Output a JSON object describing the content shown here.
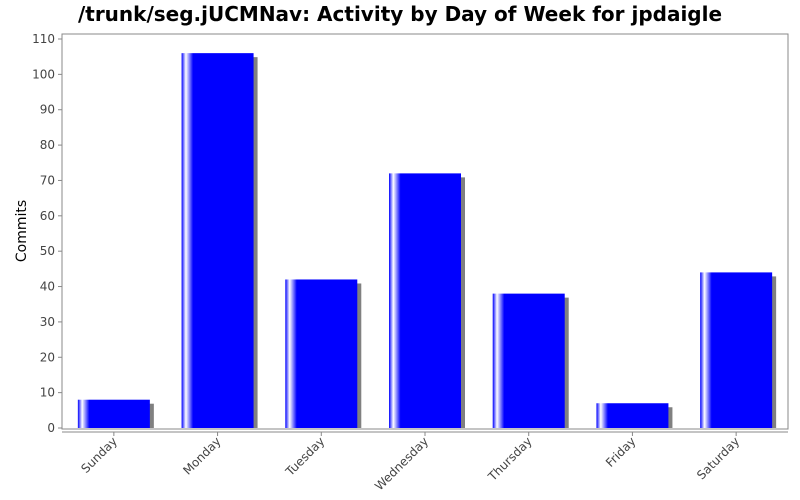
{
  "chart_data": {
    "type": "bar",
    "title": "/trunk/seg.jUCMNav: Activity by Day of Week for jpdaigle",
    "xlabel": "",
    "ylabel": "Commits",
    "categories": [
      "Sunday",
      "Monday",
      "Tuesday",
      "Wednesday",
      "Thursday",
      "Friday",
      "Saturday"
    ],
    "series": [
      {
        "values": [
          8,
          106,
          42,
          72,
          38,
          7,
          44
        ]
      }
    ],
    "ylim": [
      0,
      110
    ],
    "yticks": [
      0,
      10,
      20,
      30,
      40,
      50,
      60,
      70,
      80,
      90,
      100,
      110
    ],
    "grid": false,
    "legend": "none",
    "colors": {
      "bar": "#0000ff",
      "highlight": "#ffffff",
      "shadow": "#808080",
      "axis": "#888888"
    }
  }
}
